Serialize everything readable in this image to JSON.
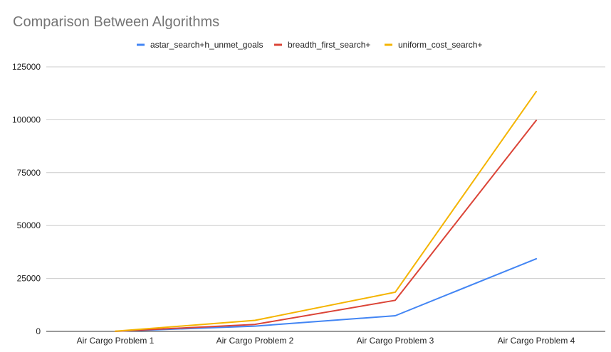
{
  "chart_data": {
    "type": "line",
    "title": "Comparison Between Algorithms",
    "xlabel": "",
    "ylabel": "",
    "categories": [
      "Air Cargo Problem 1",
      "Air Cargo Problem 2",
      "Air Cargo Problem 3",
      "Air Cargo Problem 4"
    ],
    "series": [
      {
        "name": "astar_search+h_unmet_goals",
        "color": "#4285f4",
        "values": [
          50,
          2500,
          7400,
          34300
        ]
      },
      {
        "name": "breadth_first_search+",
        "color": "#db4437",
        "values": [
          40,
          3300,
          14700,
          99700
        ]
      },
      {
        "name": "uniform_cost_search+",
        "color": "#f4b400",
        "values": [
          60,
          5200,
          18500,
          113300
        ]
      }
    ],
    "yticks": [
      "0",
      "25000",
      "50000",
      "75000",
      "100000",
      "125000"
    ],
    "ylim": [
      0,
      125000
    ],
    "grid": true,
    "legend_position": "top"
  }
}
